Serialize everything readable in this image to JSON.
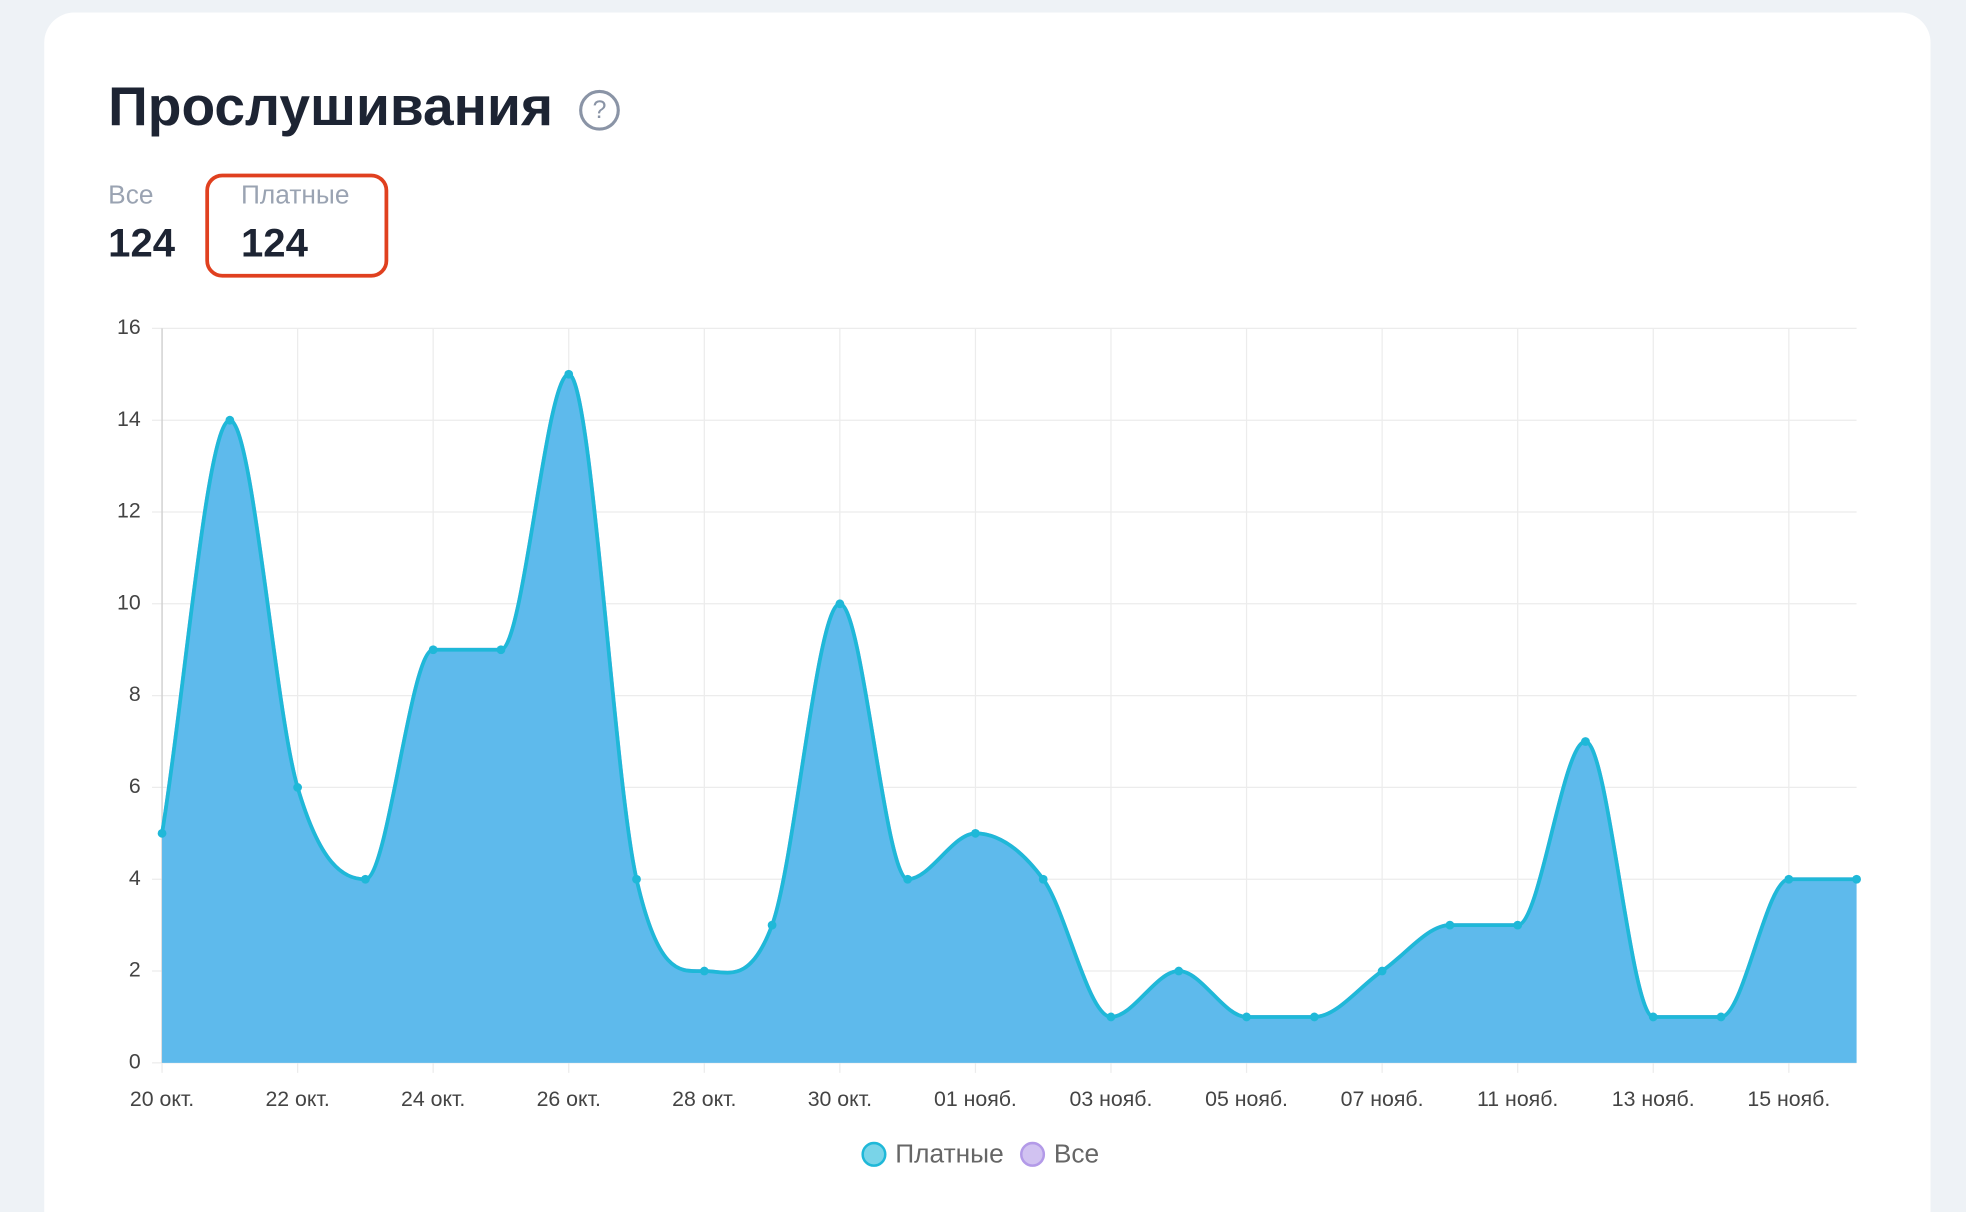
{
  "header": {
    "title": "Прослушивания",
    "help_icon": "?"
  },
  "stats": [
    {
      "label": "Все",
      "value": 124
    },
    {
      "label": "Платные",
      "value": 124
    }
  ],
  "chart_data": {
    "type": "area",
    "categories": [
      "20 окт.",
      null,
      "22 окт.",
      null,
      "24 окт.",
      null,
      "26 окт.",
      null,
      "28 окт.",
      null,
      "30 окт.",
      null,
      "01 нояб.",
      null,
      "03 нояб.",
      null,
      "05 нояб.",
      null,
      "07 нояб.",
      null,
      "11 нояб.",
      null,
      "13 нояб.",
      null,
      "15 нояб.",
      null
    ],
    "series": [
      {
        "name": "Платные",
        "color": "#1fb8d8",
        "values": [
          5,
          14,
          6,
          4,
          9,
          9,
          15,
          4,
          2,
          3,
          10,
          4,
          5,
          4,
          1,
          2,
          1,
          1,
          2,
          3,
          3,
          7,
          1,
          1,
          4,
          4
        ]
      },
      {
        "name": "Все",
        "color": "#b39ae8",
        "values": [
          5,
          14,
          6,
          4,
          9,
          9,
          15,
          4,
          2,
          3,
          10,
          4,
          5,
          4,
          1,
          2,
          1,
          1,
          2,
          3,
          3,
          7,
          1,
          1,
          4,
          4
        ]
      }
    ],
    "fill_color": "#5bb9ec",
    "ylim": [
      0,
      16
    ],
    "yticks": [
      0,
      2,
      4,
      6,
      8,
      10,
      12,
      14,
      16
    ],
    "grid": true,
    "legend": "bottom"
  }
}
